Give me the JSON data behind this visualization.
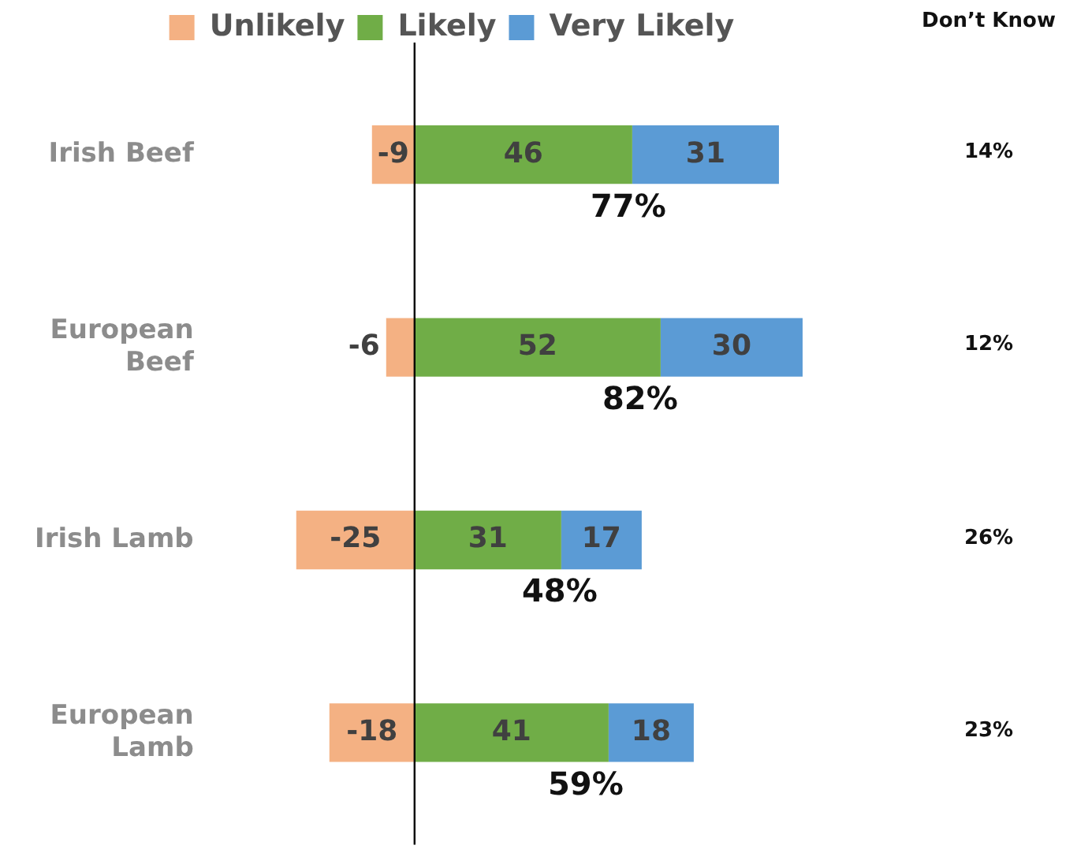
{
  "chart_data": {
    "type": "bar",
    "orientation": "horizontal",
    "stacked": true,
    "data_labels": true,
    "legend": "top",
    "tick_labels": "y",
    "categories": [
      "Irish Beef",
      "European Beef",
      "Irish Lamb",
      "European Lamb"
    ],
    "series": [
      {
        "name": "Unlikely",
        "color": "#f4b183",
        "values": [
          -9,
          -6,
          -25,
          -18
        ]
      },
      {
        "name": "Likely",
        "color": "#70ad47",
        "values": [
          46,
          52,
          31,
          41
        ]
      },
      {
        "name": "Very Likely",
        "color": "#5b9bd5",
        "values": [
          31,
          30,
          17,
          18
        ]
      }
    ],
    "annotations": [
      "Don’t Know",
      "14%",
      "12%",
      "26%",
      "23%",
      "77%",
      "82%",
      "48%",
      "59%"
    ]
  }
}
